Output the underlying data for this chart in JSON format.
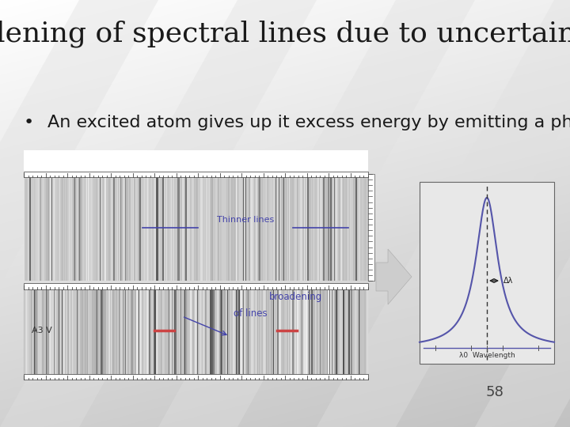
{
  "title": "lening of spectral lines due to uncertainty prin",
  "bullet_text": "An excited atom gives up it excess energy by emitting a photon of",
  "slide_bg_top": "#f0f0f0",
  "slide_bg_bottom": "#c8c8c8",
  "title_color": "#1a1a1a",
  "title_fontsize": 26,
  "bullet_fontsize": 16,
  "page_number": "58",
  "thinner_lines_label": "Thinner lines",
  "broadening_label": "broadening",
  "of_lines_label": "of lines",
  "a3v_label": "A3 V",
  "dlambda_label": "Δλ",
  "lambda0_label": "λ0  Wavelength",
  "line_color": "#4444aa",
  "curve_color": "#5555aa"
}
